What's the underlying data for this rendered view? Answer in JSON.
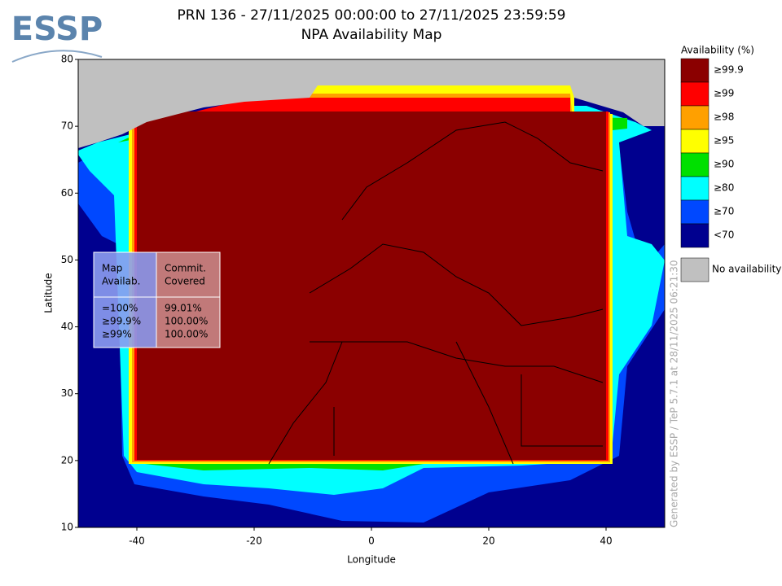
{
  "header": {
    "logo": "ESSP",
    "title": "PRN 136 - 27/11/2025 00:00:00 to 27/11/2025 23:59:59",
    "subtitle": "NPA Availability Map"
  },
  "map": {
    "xlabel": "Longitude",
    "ylabel": "Latitude",
    "xlim": [
      -50,
      50
    ],
    "ylim": [
      10,
      80
    ],
    "xticks": [
      -40,
      -20,
      0,
      20,
      40
    ],
    "yticks": [
      10,
      20,
      30,
      40,
      50,
      60,
      70,
      80
    ]
  },
  "legend": {
    "title": "Availability (%)",
    "items": [
      {
        "label": "≥99.9",
        "color": "#8b0000"
      },
      {
        "label": "≥99",
        "color": "#ff0000"
      },
      {
        "label": "≥98",
        "color": "#ffa000"
      },
      {
        "label": "≥95",
        "color": "#ffff00"
      },
      {
        "label": "≥90",
        "color": "#00e000"
      },
      {
        "label": "≥80",
        "color": "#00ffff"
      },
      {
        "label": "≥70",
        "color": "#0048ff"
      },
      {
        "label": "<70",
        "color": "#00008f"
      }
    ],
    "no_availability": {
      "label": "No availability",
      "color": "#c0c0c0"
    }
  },
  "table": {
    "headers": [
      [
        "Map",
        "Availab."
      ],
      [
        "Commit.",
        "Covered"
      ]
    ],
    "columns": [
      [
        "=100%",
        "≥99.9%",
        "≥99%"
      ],
      [
        "99.01%",
        "100.00%",
        "100.00%"
      ]
    ]
  },
  "footer": "Generated by ESSP / TeP 5.7.1 at 28/11/2025 06:21:30"
}
